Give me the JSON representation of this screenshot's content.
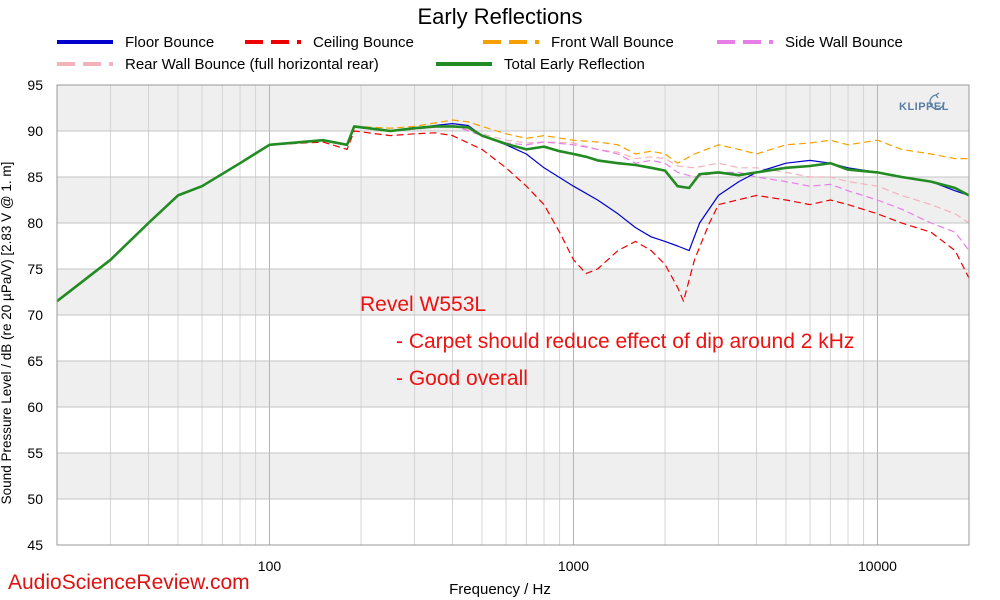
{
  "watermark": "AudioScienceReview.com",
  "logo": "KLIPPEL",
  "chart_data": {
    "type": "line",
    "title": "Early Reflections",
    "xlabel": "Frequency / Hz",
    "ylabel": "Sound Pressure Level / dB (re 20 µPa/V)  [2.83  V @ 1. m]",
    "x_scale": "log",
    "xlim": [
      20,
      20000
    ],
    "ylim": [
      45,
      95
    ],
    "x_ticks": [
      100,
      1000,
      10000
    ],
    "x_tick_labels": [
      "100",
      "1000",
      "10000"
    ],
    "y_ticks": [
      45,
      50,
      55,
      60,
      65,
      70,
      75,
      80,
      85,
      90,
      95
    ],
    "y_tick_labels": [
      "45",
      "50",
      "55",
      "60",
      "65",
      "70",
      "75",
      "80",
      "85",
      "90",
      "95"
    ],
    "grid": true,
    "legend": "top",
    "annotations": [
      "Revel W553L",
      "- Carpet should reduce effect of dip around 2 kHz",
      "- Good overall"
    ],
    "series": [
      {
        "name": "Floor Bounce",
        "color": "#0000cc",
        "dash": "solid",
        "points": [
          [
            20,
            71.5
          ],
          [
            30,
            76
          ],
          [
            40,
            80
          ],
          [
            50,
            83
          ],
          [
            60,
            84
          ],
          [
            80,
            86.5
          ],
          [
            100,
            88.5
          ],
          [
            150,
            89
          ],
          [
            180,
            88.5
          ],
          [
            190,
            90.5
          ],
          [
            250,
            90
          ],
          [
            300,
            90.3
          ],
          [
            350,
            90.6
          ],
          [
            400,
            90.8
          ],
          [
            450,
            90.6
          ],
          [
            500,
            89.5
          ],
          [
            600,
            88.5
          ],
          [
            700,
            87.5
          ],
          [
            800,
            86
          ],
          [
            1000,
            84
          ],
          [
            1200,
            82.5
          ],
          [
            1400,
            81
          ],
          [
            1600,
            79.5
          ],
          [
            1800,
            78.5
          ],
          [
            2000,
            78
          ],
          [
            2200,
            77.5
          ],
          [
            2400,
            77
          ],
          [
            2600,
            80
          ],
          [
            3000,
            83
          ],
          [
            3500,
            84.5
          ],
          [
            4000,
            85.5
          ],
          [
            5000,
            86.5
          ],
          [
            6000,
            86.8
          ],
          [
            7000,
            86.5
          ],
          [
            8000,
            86
          ],
          [
            10000,
            85.5
          ],
          [
            12000,
            85
          ],
          [
            15000,
            84.5
          ],
          [
            18000,
            83.5
          ],
          [
            20000,
            83
          ]
        ]
      },
      {
        "name": "Ceiling Bounce",
        "color": "#ee0000",
        "dash": "dashed",
        "points": [
          [
            20,
            71.5
          ],
          [
            30,
            76
          ],
          [
            40,
            80
          ],
          [
            50,
            83
          ],
          [
            60,
            84
          ],
          [
            80,
            86.5
          ],
          [
            100,
            88.5
          ],
          [
            150,
            88.8
          ],
          [
            180,
            88
          ],
          [
            190,
            90
          ],
          [
            250,
            89.5
          ],
          [
            300,
            89.7
          ],
          [
            350,
            89.8
          ],
          [
            400,
            89.5
          ],
          [
            500,
            88
          ],
          [
            600,
            86
          ],
          [
            700,
            84
          ],
          [
            800,
            82
          ],
          [
            900,
            79
          ],
          [
            1000,
            76
          ],
          [
            1100,
            74.5
          ],
          [
            1200,
            75
          ],
          [
            1400,
            77
          ],
          [
            1600,
            78
          ],
          [
            1800,
            77
          ],
          [
            2000,
            75.5
          ],
          [
            2200,
            73
          ],
          [
            2300,
            71.5
          ],
          [
            2500,
            76
          ],
          [
            2800,
            80
          ],
          [
            3000,
            82
          ],
          [
            4000,
            83
          ],
          [
            5000,
            82.5
          ],
          [
            6000,
            82
          ],
          [
            7000,
            82.5
          ],
          [
            8000,
            82
          ],
          [
            10000,
            81
          ],
          [
            12000,
            80
          ],
          [
            15000,
            79
          ],
          [
            18000,
            77
          ],
          [
            20000,
            74
          ]
        ]
      },
      {
        "name": "Front Wall Bounce",
        "color": "#f5a000",
        "dash": "dashed",
        "points": [
          [
            20,
            71.5
          ],
          [
            30,
            76
          ],
          [
            40,
            80
          ],
          [
            50,
            83
          ],
          [
            60,
            84
          ],
          [
            80,
            86.5
          ],
          [
            100,
            88.5
          ],
          [
            150,
            89
          ],
          [
            180,
            88.5
          ],
          [
            190,
            90.5
          ],
          [
            250,
            90.3
          ],
          [
            300,
            90.5
          ],
          [
            400,
            91.2
          ],
          [
            450,
            91
          ],
          [
            500,
            90.5
          ],
          [
            600,
            89.7
          ],
          [
            700,
            89.2
          ],
          [
            800,
            89.5
          ],
          [
            1000,
            89
          ],
          [
            1200,
            88.8
          ],
          [
            1400,
            88.5
          ],
          [
            1600,
            87.5
          ],
          [
            1800,
            87.8
          ],
          [
            2000,
            87.5
          ],
          [
            2200,
            86.5
          ],
          [
            2500,
            87.5
          ],
          [
            3000,
            88.5
          ],
          [
            3500,
            88
          ],
          [
            4000,
            87.5
          ],
          [
            5000,
            88.5
          ],
          [
            6000,
            88.7
          ],
          [
            7000,
            89
          ],
          [
            8000,
            88.5
          ],
          [
            10000,
            89
          ],
          [
            12000,
            88
          ],
          [
            15000,
            87.5
          ],
          [
            18000,
            87
          ],
          [
            20000,
            87
          ]
        ]
      },
      {
        "name": "Side Wall Bounce",
        "color": "#e77ee7",
        "dash": "dashed",
        "points": [
          [
            20,
            71.5
          ],
          [
            30,
            76
          ],
          [
            40,
            80
          ],
          [
            50,
            83
          ],
          [
            60,
            84
          ],
          [
            80,
            86.5
          ],
          [
            100,
            88.5
          ],
          [
            150,
            89
          ],
          [
            180,
            88.5
          ],
          [
            190,
            90.5
          ],
          [
            250,
            90
          ],
          [
            300,
            90.2
          ],
          [
            400,
            90.6
          ],
          [
            500,
            89.5
          ],
          [
            600,
            88.7
          ],
          [
            700,
            88.5
          ],
          [
            800,
            88.8
          ],
          [
            1000,
            88.5
          ],
          [
            1200,
            88
          ],
          [
            1400,
            87.5
          ],
          [
            1600,
            86.5
          ],
          [
            1800,
            86.8
          ],
          [
            2000,
            86.5
          ],
          [
            2200,
            85.5
          ],
          [
            2500,
            85
          ],
          [
            3000,
            85.5
          ],
          [
            3500,
            85.5
          ],
          [
            4000,
            85
          ],
          [
            5000,
            84.5
          ],
          [
            6000,
            84
          ],
          [
            7000,
            84.2
          ],
          [
            8000,
            83.5
          ],
          [
            10000,
            82.5
          ],
          [
            12000,
            81.5
          ],
          [
            15000,
            80
          ],
          [
            18000,
            79
          ],
          [
            20000,
            77
          ]
        ]
      },
      {
        "name": "Rear Wall Bounce (full horizontal rear)",
        "color": "#f2b3bd",
        "dash": "dashed",
        "points": [
          [
            20,
            71.5
          ],
          [
            30,
            76
          ],
          [
            40,
            80
          ],
          [
            50,
            83
          ],
          [
            60,
            84
          ],
          [
            80,
            86.5
          ],
          [
            100,
            88.5
          ],
          [
            150,
            89
          ],
          [
            180,
            88.5
          ],
          [
            190,
            90.5
          ],
          [
            250,
            90
          ],
          [
            300,
            90.2
          ],
          [
            400,
            90.6
          ],
          [
            500,
            89.7
          ],
          [
            600,
            89
          ],
          [
            700,
            88.7
          ],
          [
            800,
            88.8
          ],
          [
            1000,
            88.7
          ],
          [
            1200,
            88
          ],
          [
            1400,
            87.7
          ],
          [
            1600,
            87
          ],
          [
            1800,
            87.2
          ],
          [
            2000,
            87
          ],
          [
            2200,
            86.2
          ],
          [
            2500,
            86
          ],
          [
            3000,
            86.5
          ],
          [
            3500,
            86
          ],
          [
            4000,
            86
          ],
          [
            5000,
            85.5
          ],
          [
            6000,
            85
          ],
          [
            7000,
            85
          ],
          [
            8000,
            84.5
          ],
          [
            10000,
            84
          ],
          [
            12000,
            83
          ],
          [
            15000,
            82
          ],
          [
            18000,
            81
          ],
          [
            20000,
            80
          ]
        ]
      },
      {
        "name": "Total Early Reflection",
        "color": "#228b22",
        "dash": "solid",
        "points": [
          [
            20,
            71.5
          ],
          [
            30,
            76
          ],
          [
            40,
            80
          ],
          [
            50,
            83
          ],
          [
            60,
            84
          ],
          [
            80,
            86.5
          ],
          [
            100,
            88.5
          ],
          [
            150,
            89
          ],
          [
            180,
            88.5
          ],
          [
            190,
            90.5
          ],
          [
            250,
            90
          ],
          [
            300,
            90.3
          ],
          [
            350,
            90.5
          ],
          [
            400,
            90.5
          ],
          [
            450,
            90.4
          ],
          [
            500,
            89.5
          ],
          [
            600,
            88.6
          ],
          [
            700,
            88
          ],
          [
            800,
            88.3
          ],
          [
            900,
            87.8
          ],
          [
            1000,
            87.5
          ],
          [
            1100,
            87.2
          ],
          [
            1200,
            86.8
          ],
          [
            1400,
            86.5
          ],
          [
            1600,
            86.3
          ],
          [
            1800,
            86
          ],
          [
            2000,
            85.7
          ],
          [
            2200,
            84
          ],
          [
            2400,
            83.8
          ],
          [
            2600,
            85.3
          ],
          [
            3000,
            85.5
          ],
          [
            3500,
            85.2
          ],
          [
            4000,
            85.5
          ],
          [
            5000,
            86
          ],
          [
            6000,
            86.2
          ],
          [
            7000,
            86.5
          ],
          [
            8000,
            85.8
          ],
          [
            10000,
            85.5
          ],
          [
            12000,
            85
          ],
          [
            15000,
            84.5
          ],
          [
            18000,
            83.8
          ],
          [
            20000,
            83
          ]
        ]
      }
    ]
  }
}
